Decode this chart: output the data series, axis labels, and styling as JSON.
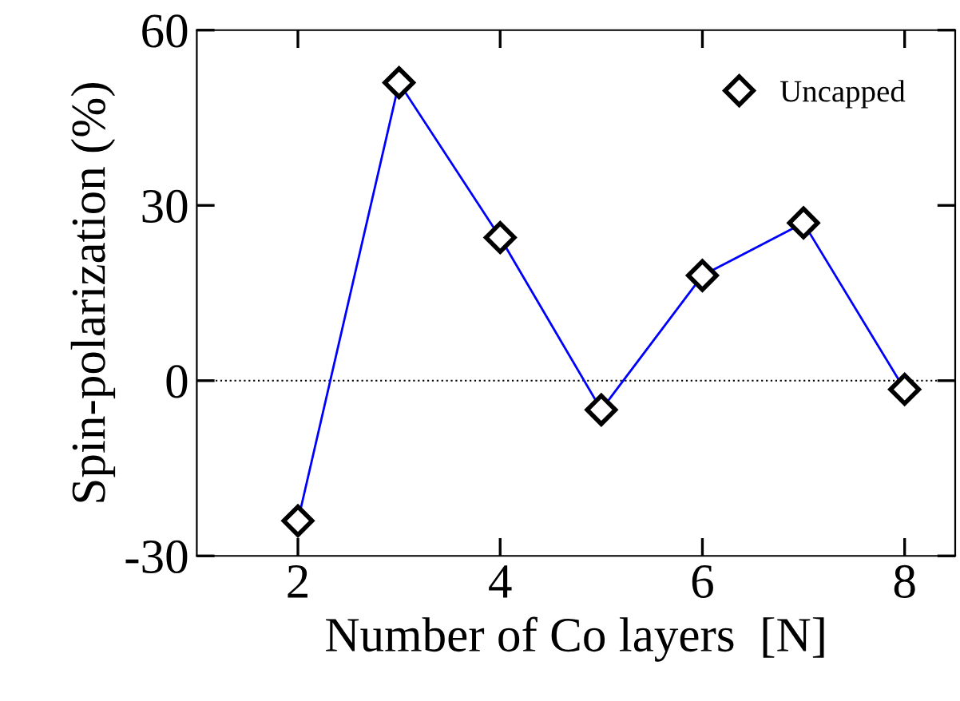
{
  "chart_data": {
    "type": "line",
    "xlabel": "Number of Co layers  [N]",
    "ylabel": "Spin-polarization (%)",
    "x": [
      2,
      3,
      4,
      5,
      6,
      7,
      8
    ],
    "series": [
      {
        "name": "Uncapped",
        "color": "#0000ff",
        "values": [
          -24,
          51,
          24.5,
          -5,
          18,
          27,
          -1.5
        ]
      }
    ],
    "xlim": [
      1,
      8.5
    ],
    "xticks": [
      2,
      4,
      6,
      8
    ],
    "ylim": [
      -30,
      60
    ],
    "yticks": [
      -30,
      0,
      30,
      60
    ],
    "ref_lines": [
      {
        "axis": "y",
        "value": 0,
        "color": "#000000",
        "line_style": "dotted"
      }
    ],
    "marker": "diamond",
    "legend": "top right",
    "grid": false
  }
}
